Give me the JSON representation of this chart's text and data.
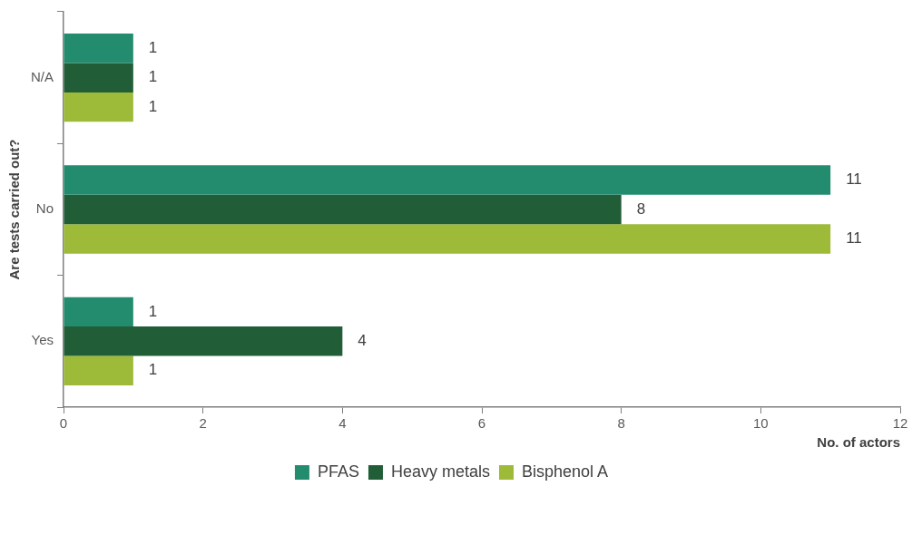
{
  "chart_data": {
    "type": "bar",
    "orientation": "horizontal",
    "xlabel": "No. of actors",
    "ylabel": "Are tests carried out?",
    "categories": [
      "N/A",
      "No",
      "Yes"
    ],
    "series": [
      {
        "name": "PFAS",
        "color": "#238c6e",
        "values": [
          1,
          11,
          1
        ]
      },
      {
        "name": "Heavy metals",
        "color": "#215e38",
        "values": [
          1,
          8,
          4
        ]
      },
      {
        "name": "Bisphenol A",
        "color": "#9dba38",
        "values": [
          1,
          11,
          1
        ]
      }
    ],
    "xlim": [
      0,
      12
    ],
    "xticks": [
      0,
      2,
      4,
      6,
      8,
      10,
      12
    ],
    "grid": false,
    "legend": "bottom",
    "data_labels": true
  }
}
